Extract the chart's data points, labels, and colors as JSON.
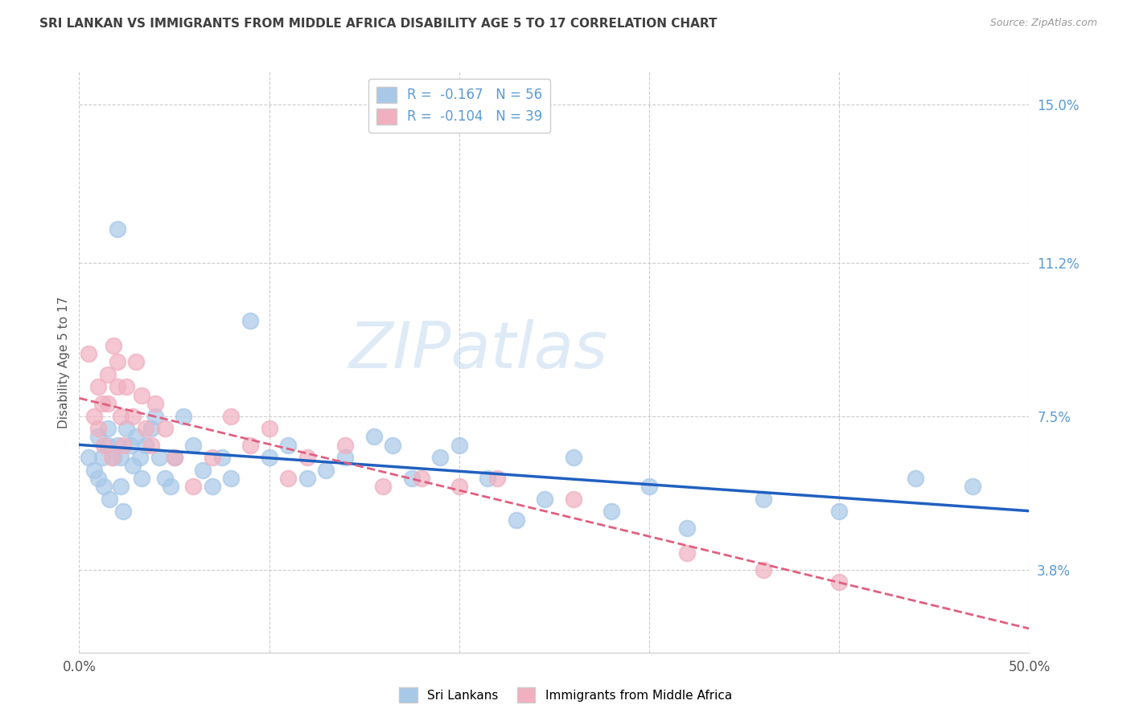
{
  "title": "SRI LANKAN VS IMMIGRANTS FROM MIDDLE AFRICA DISABILITY AGE 5 TO 17 CORRELATION CHART",
  "source": "Source: ZipAtlas.com",
  "ylabel": "Disability Age 5 to 17",
  "xlim": [
    0.0,
    0.5
  ],
  "ylim": [
    0.018,
    0.158
  ],
  "xtick_positions": [
    0.0,
    0.1,
    0.2,
    0.3,
    0.4,
    0.5
  ],
  "xticklabels": [
    "0.0%",
    "",
    "",
    "",
    "",
    "50.0%"
  ],
  "yticks_right": [
    0.038,
    0.075,
    0.112,
    0.15
  ],
  "ytick_labels_right": [
    "3.8%",
    "7.5%",
    "11.2%",
    "15.0%"
  ],
  "blue_R": -0.167,
  "blue_N": 56,
  "pink_R": -0.104,
  "pink_N": 39,
  "blue_color": "#a8c8e8",
  "pink_color": "#f0b0c0",
  "blue_line_color": "#2060c0",
  "pink_line_color": "#e06080",
  "title_color": "#404040",
  "source_color": "#999999",
  "right_axis_color": "#5b9bd5",
  "legend_label_blue": "Sri Lankans",
  "legend_label_pink": "Immigrants from Middle Africa",
  "watermark": "ZIPatlas",
  "watermark_color": "#c8ddf0",
  "blue_x": [
    0.005,
    0.008,
    0.01,
    0.01,
    0.012,
    0.013,
    0.015,
    0.015,
    0.016,
    0.018,
    0.02,
    0.02,
    0.022,
    0.022,
    0.023,
    0.025,
    0.027,
    0.028,
    0.03,
    0.032,
    0.033,
    0.035,
    0.038,
    0.04,
    0.042,
    0.045,
    0.048,
    0.05,
    0.055,
    0.06,
    0.065,
    0.07,
    0.075,
    0.08,
    0.09,
    0.1,
    0.11,
    0.12,
    0.13,
    0.14,
    0.155,
    0.165,
    0.175,
    0.19,
    0.2,
    0.215,
    0.23,
    0.245,
    0.26,
    0.28,
    0.3,
    0.32,
    0.36,
    0.4,
    0.44,
    0.47
  ],
  "blue_y": [
    0.065,
    0.062,
    0.07,
    0.06,
    0.065,
    0.058,
    0.072,
    0.068,
    0.055,
    0.065,
    0.12,
    0.068,
    0.065,
    0.058,
    0.052,
    0.072,
    0.068,
    0.063,
    0.07,
    0.065,
    0.06,
    0.068,
    0.072,
    0.075,
    0.065,
    0.06,
    0.058,
    0.065,
    0.075,
    0.068,
    0.062,
    0.058,
    0.065,
    0.06,
    0.098,
    0.065,
    0.068,
    0.06,
    0.062,
    0.065,
    0.07,
    0.068,
    0.06,
    0.065,
    0.068,
    0.06,
    0.05,
    0.055,
    0.065,
    0.052,
    0.058,
    0.048,
    0.055,
    0.052,
    0.06,
    0.058
  ],
  "pink_x": [
    0.005,
    0.008,
    0.01,
    0.01,
    0.012,
    0.013,
    0.015,
    0.015,
    0.017,
    0.018,
    0.02,
    0.02,
    0.022,
    0.023,
    0.025,
    0.028,
    0.03,
    0.033,
    0.035,
    0.038,
    0.04,
    0.045,
    0.05,
    0.06,
    0.07,
    0.08,
    0.09,
    0.1,
    0.11,
    0.12,
    0.14,
    0.16,
    0.18,
    0.2,
    0.22,
    0.26,
    0.32,
    0.36,
    0.4
  ],
  "pink_y": [
    0.09,
    0.075,
    0.082,
    0.072,
    0.078,
    0.068,
    0.085,
    0.078,
    0.065,
    0.092,
    0.088,
    0.082,
    0.075,
    0.068,
    0.082,
    0.075,
    0.088,
    0.08,
    0.072,
    0.068,
    0.078,
    0.072,
    0.065,
    0.058,
    0.065,
    0.075,
    0.068,
    0.072,
    0.06,
    0.065,
    0.068,
    0.058,
    0.06,
    0.058,
    0.06,
    0.055,
    0.042,
    0.038,
    0.035
  ]
}
